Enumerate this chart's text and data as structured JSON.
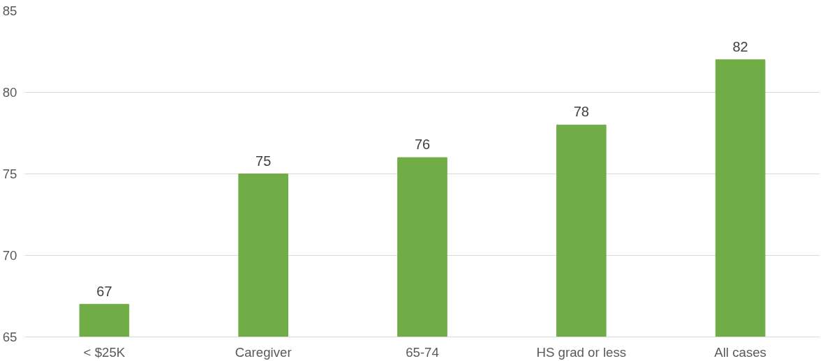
{
  "chart_data": {
    "type": "bar",
    "categories": [
      "< $25K",
      "Caregiver",
      "65-74",
      "HS grad or less",
      "All cases"
    ],
    "values": [
      67,
      75,
      76,
      78,
      82
    ],
    "color": "#70ad47",
    "ylim": [
      65,
      85
    ],
    "yticks": [
      65,
      70,
      75,
      80,
      85
    ],
    "grid": "y",
    "data_labels": true
  }
}
